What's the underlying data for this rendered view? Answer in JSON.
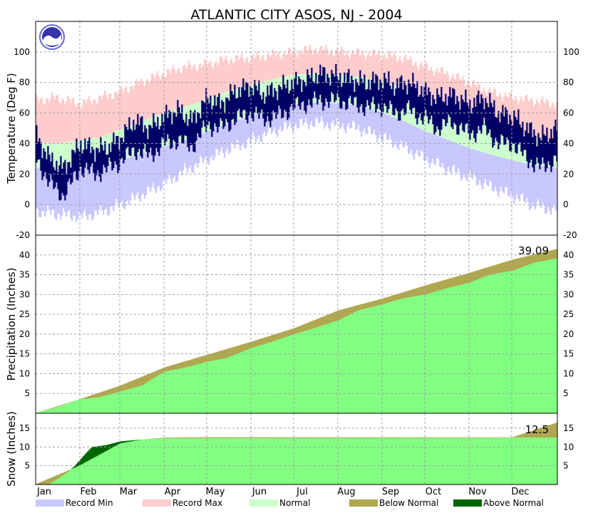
{
  "chart_data": {
    "type": "area",
    "title": "ATLANTIC CITY  ASOS, NJ - 2004",
    "months": [
      "Jan",
      "Feb",
      "Mar",
      "Apr",
      "May",
      "Jun",
      "Jul",
      "Aug",
      "Sep",
      "Oct",
      "Nov",
      "Dec"
    ],
    "legend": [
      {
        "label": "Record Min",
        "color": "#c8c8ff"
      },
      {
        "label": "Record Max",
        "color": "#ffcccc"
      },
      {
        "label": "Normal",
        "color": "#ccffcc"
      },
      {
        "label": "Below Normal",
        "color": "#b0a850"
      },
      {
        "label": "Above Normal",
        "color": "#006400"
      }
    ],
    "colors": {
      "record_min": "#c8c8ff",
      "record_max": "#ffcccc",
      "normal": "#ccffcc",
      "observed_temp": "#000066",
      "observed_precip": "#80ff80",
      "below_normal": "#b0a850",
      "above_normal": "#006400"
    },
    "panels": [
      {
        "id": "temperature",
        "ylabel": "Temperature (Deg F)",
        "ylim": [
          -20,
          120
        ],
        "yticks": [
          -20,
          0,
          20,
          40,
          60,
          80,
          100
        ],
        "series": [
          {
            "name": "Record Max",
            "x_month": [
              1,
              15,
              32,
              46,
              60,
              74,
              91,
              105,
              121,
              135,
              152,
              166,
              182,
              196,
              213,
              227,
              244,
              258,
              274,
              288,
              305,
              319,
              335,
              349,
              366
            ],
            "values": [
              68,
              70,
              66,
              70,
              74,
              80,
              86,
              90,
              92,
              95,
              96,
              98,
              100,
              102,
              100,
              99,
              98,
              96,
              90,
              86,
              80,
              74,
              70,
              68,
              66
            ]
          },
          {
            "name": "Normal High",
            "x_month": [
              1,
              15,
              32,
              46,
              60,
              74,
              91,
              105,
              121,
              135,
              152,
              166,
              182,
              196,
              213,
              227,
              244,
              258,
              274,
              288,
              305,
              319,
              335,
              349,
              366
            ],
            "values": [
              41,
              40,
              42,
              44,
              49,
              54,
              60,
              64,
              69,
              74,
              78,
              82,
              85,
              86,
              85,
              84,
              80,
              76,
              70,
              65,
              59,
              54,
              48,
              44,
              41
            ]
          },
          {
            "name": "Normal Low",
            "x_month": [
              1,
              15,
              32,
              46,
              60,
              74,
              91,
              105,
              121,
              135,
              152,
              166,
              182,
              196,
              213,
              227,
              244,
              258,
              274,
              288,
              305,
              319,
              335,
              349,
              366
            ],
            "values": [
              24,
              23,
              24,
              26,
              29,
              33,
              38,
              42,
              48,
              53,
              58,
              62,
              66,
              67,
              66,
              65,
              60,
              55,
              48,
              43,
              37,
              33,
              29,
              26,
              24
            ]
          },
          {
            "name": "Record Min",
            "x_month": [
              1,
              15,
              32,
              46,
              60,
              74,
              91,
              105,
              121,
              135,
              152,
              166,
              182,
              196,
              213,
              227,
              244,
              258,
              274,
              288,
              305,
              319,
              335,
              349,
              366
            ],
            "values": [
              -4,
              -6,
              -8,
              -5,
              0,
              6,
              14,
              22,
              30,
              36,
              42,
              48,
              52,
              54,
              52,
              50,
              44,
              38,
              30,
              24,
              18,
              12,
              6,
              0,
              -4
            ]
          },
          {
            "name": "Observed High",
            "x_month": [
              1,
              10,
              20,
              32,
              42,
              52,
              60,
              70,
              80,
              91,
              100,
              110,
              121,
              130,
              140,
              152,
              160,
              170,
              182,
              190,
              200,
              213,
              222,
              232,
              244,
              252,
              262,
              274,
              282,
              292,
              305,
              315,
              325,
              335,
              345,
              355,
              366
            ],
            "values": [
              45,
              30,
              24,
              40,
              36,
              38,
              44,
              55,
              50,
              58,
              62,
              55,
              70,
              66,
              74,
              78,
              72,
              76,
              80,
              82,
              86,
              84,
              82,
              80,
              82,
              78,
              80,
              74,
              70,
              72,
              66,
              70,
              60,
              58,
              50,
              44,
              50
            ]
          },
          {
            "name": "Observed Low",
            "x_month": [
              1,
              10,
              20,
              32,
              42,
              52,
              60,
              70,
              80,
              91,
              100,
              110,
              121,
              130,
              140,
              152,
              160,
              170,
              182,
              190,
              200,
              213,
              222,
              232,
              244,
              252,
              262,
              274,
              282,
              292,
              305,
              315,
              325,
              335,
              345,
              355,
              366
            ],
            "values": [
              30,
              14,
              6,
              24,
              20,
              24,
              28,
              36,
              32,
              40,
              42,
              38,
              52,
              50,
              56,
              60,
              56,
              58,
              64,
              66,
              68,
              68,
              66,
              64,
              64,
              60,
              62,
              56,
              50,
              54,
              46,
              50,
              40,
              40,
              30,
              24,
              30
            ]
          }
        ]
      },
      {
        "id": "precipitation",
        "ylabel": "Precipitation (Inches)",
        "ylim": [
          0,
          45
        ],
        "yticks": [
          5,
          10,
          15,
          20,
          25,
          30,
          35,
          40
        ],
        "annotation": "39.09",
        "series": [
          {
            "name": "Normal (cumulative)",
            "x_month": [
              0,
              31,
              60,
              91,
              121,
              152,
              182,
              213,
              244,
              274,
              305,
              335,
              366
            ],
            "values": [
              0,
              3.5,
              7.0,
              11.6,
              14.8,
              18.1,
              21.5,
              26.0,
              29.0,
              32.3,
              35.5,
              38.8,
              41.5
            ]
          },
          {
            "name": "Observed (cumulative)",
            "x_month": [
              0,
              15,
              31,
              45,
              60,
              75,
              91,
              105,
              121,
              135,
              152,
              166,
              182,
              196,
              213,
              227,
              244,
              258,
              274,
              288,
              305,
              319,
              335,
              350,
              366
            ],
            "values": [
              0,
              1.5,
              3.5,
              4.0,
              5.5,
              7.0,
              10.5,
              11.5,
              13.0,
              14.0,
              16.5,
              18.0,
              20.0,
              21.5,
              23.5,
              26.0,
              27.5,
              29.0,
              30.0,
              31.5,
              33.0,
              35.0,
              36.0,
              38.0,
              39.09
            ]
          }
        ]
      },
      {
        "id": "snow",
        "ylabel": "Snow (Inches)",
        "ylim": [
          0,
          19
        ],
        "yticks": [
          5,
          10,
          15
        ],
        "annotation": "12.5",
        "series": [
          {
            "name": "Normal (cumulative)",
            "x_month": [
              0,
              31,
              60,
              75,
              91,
              120,
              335,
              366
            ],
            "values": [
              0,
              5.0,
              11.0,
              12.0,
              12.5,
              12.6,
              12.6,
              16.5
            ]
          },
          {
            "name": "Observed (cumulative)",
            "x_month": [
              0,
              10,
              14,
              22,
              28,
              35,
              40,
              50,
              60,
              75,
              91,
              335,
              366
            ],
            "values": [
              0,
              0,
              1,
              3,
              5,
              8,
              10,
              10.5,
              11.5,
              12.0,
              12.3,
              12.5,
              12.5
            ]
          }
        ]
      }
    ]
  }
}
